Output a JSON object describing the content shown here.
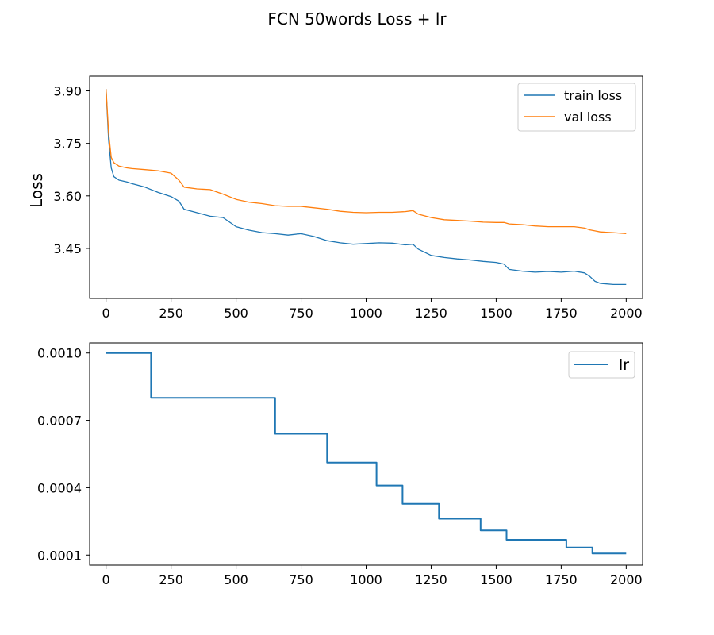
{
  "figure": {
    "title": "FCN 50words Loss + lr",
    "colors": {
      "train": "#1f77b4",
      "val": "#ff7f0e",
      "lr": "#1f77b4",
      "axis": "#000000"
    }
  },
  "chart_data": [
    {
      "type": "line",
      "title": "",
      "xlabel": "",
      "ylabel": "Loss",
      "xlim": [
        -63,
        2063
      ],
      "ylim": [
        3.307,
        3.942
      ],
      "x_ticks": [
        0,
        250,
        500,
        750,
        1000,
        1250,
        1500,
        1750,
        2000
      ],
      "y_ticks": [
        3.45,
        3.6,
        3.75,
        3.9
      ],
      "y_tick_labels": [
        "3.45",
        "3.60",
        "3.75",
        "3.90"
      ],
      "grid": false,
      "legend": "top-right",
      "series": [
        {
          "name": "train loss",
          "color": "#1f77b4",
          "x": [
            0,
            10,
            20,
            30,
            50,
            80,
            100,
            150,
            200,
            250,
            280,
            300,
            350,
            400,
            450,
            500,
            550,
            600,
            650,
            700,
            750,
            800,
            850,
            900,
            950,
            1000,
            1050,
            1100,
            1150,
            1180,
            1200,
            1250,
            1300,
            1350,
            1400,
            1450,
            1500,
            1530,
            1550,
            1600,
            1650,
            1700,
            1750,
            1800,
            1840,
            1860,
            1880,
            1900,
            1950,
            2000
          ],
          "y": [
            3.905,
            3.76,
            3.68,
            3.655,
            3.645,
            3.64,
            3.635,
            3.625,
            3.61,
            3.598,
            3.585,
            3.562,
            3.552,
            3.542,
            3.538,
            3.512,
            3.502,
            3.495,
            3.492,
            3.488,
            3.492,
            3.484,
            3.472,
            3.466,
            3.462,
            3.464,
            3.466,
            3.465,
            3.46,
            3.462,
            3.448,
            3.43,
            3.424,
            3.42,
            3.417,
            3.413,
            3.41,
            3.405,
            3.39,
            3.385,
            3.382,
            3.384,
            3.382,
            3.385,
            3.38,
            3.37,
            3.356,
            3.35,
            3.347,
            3.347
          ]
        },
        {
          "name": "val loss",
          "color": "#ff7f0e",
          "x": [
            0,
            10,
            20,
            30,
            50,
            80,
            100,
            150,
            200,
            250,
            280,
            300,
            350,
            400,
            450,
            500,
            550,
            600,
            650,
            700,
            750,
            800,
            850,
            900,
            950,
            1000,
            1050,
            1100,
            1150,
            1180,
            1200,
            1250,
            1300,
            1350,
            1400,
            1450,
            1500,
            1530,
            1550,
            1600,
            1650,
            1700,
            1750,
            1800,
            1840,
            1860,
            1880,
            1900,
            1950,
            2000
          ],
          "y": [
            3.905,
            3.78,
            3.71,
            3.695,
            3.685,
            3.68,
            3.678,
            3.675,
            3.672,
            3.665,
            3.645,
            3.625,
            3.62,
            3.618,
            3.605,
            3.59,
            3.582,
            3.578,
            3.572,
            3.57,
            3.57,
            3.566,
            3.562,
            3.556,
            3.553,
            3.552,
            3.553,
            3.553,
            3.555,
            3.558,
            3.548,
            3.538,
            3.532,
            3.53,
            3.528,
            3.525,
            3.524,
            3.524,
            3.52,
            3.518,
            3.514,
            3.512,
            3.512,
            3.512,
            3.508,
            3.503,
            3.5,
            3.497,
            3.495,
            3.492
          ]
        }
      ],
      "legend_entries": [
        "train loss",
        "val loss"
      ]
    },
    {
      "type": "line",
      "title": "",
      "xlabel": "",
      "ylabel": "",
      "xlim": [
        -63,
        2063
      ],
      "ylim": [
        5.5e-05,
        0.001045
      ],
      "x_ticks": [
        0,
        250,
        500,
        750,
        1000,
        1250,
        1500,
        1750,
        2000
      ],
      "y_ticks": [
        0.0001,
        0.0004,
        0.0007,
        0.001
      ],
      "y_tick_labels": [
        "0.0001",
        "0.0004",
        "0.0007",
        "0.0010"
      ],
      "grid": false,
      "legend": "top-right",
      "series": [
        {
          "name": "lr",
          "color": "#1f77b4",
          "step": true,
          "x": [
            0,
            173,
            173,
            650,
            650,
            850,
            850,
            1040,
            1040,
            1140,
            1140,
            1280,
            1280,
            1440,
            1440,
            1540,
            1540,
            1770,
            1770,
            1870,
            1870,
            2000
          ],
          "y": [
            0.001,
            0.001,
            0.0008,
            0.0008,
            0.00064,
            0.00064,
            0.000512,
            0.000512,
            0.00041,
            0.00041,
            0.000328,
            0.000328,
            0.000262,
            0.000262,
            0.00021,
            0.00021,
            0.000168,
            0.000168,
            0.000134,
            0.000134,
            0.000107,
            0.000107
          ]
        }
      ],
      "legend_entries": [
        "lr"
      ]
    }
  ]
}
